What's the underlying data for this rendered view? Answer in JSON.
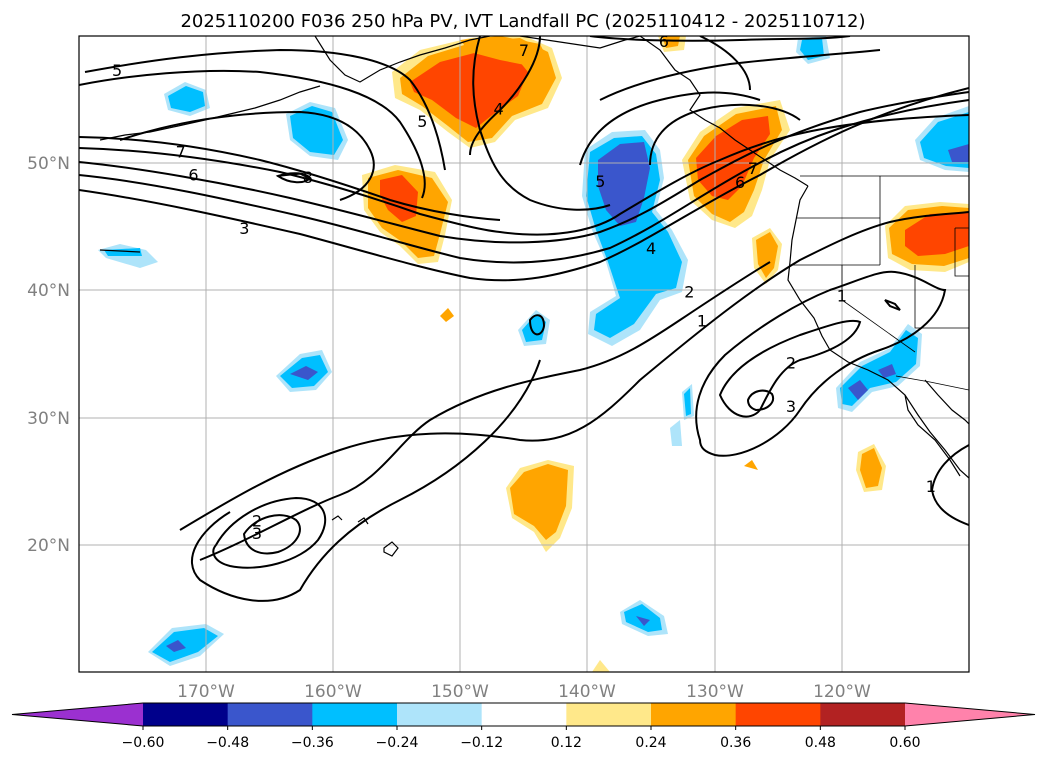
{
  "chart_data": {
    "type": "map-contour",
    "title": "2025110200 F036 250 hPa PV, IVT Landfall PC (2025110412 - 2025110712)",
    "lon_range": [
      -180,
      -110
    ],
    "lat_range": [
      10,
      60
    ],
    "lon_ticks": [
      -170,
      -160,
      -150,
      -140,
      -130,
      -120
    ],
    "lat_ticks": [
      20,
      30,
      40,
      50
    ],
    "lon_tick_labels": [
      "170°W",
      "160°W",
      "150°W",
      "140°W",
      "130°W",
      "120°W"
    ],
    "lat_tick_labels": [
      "20°N",
      "30°N",
      "40°N",
      "50°N"
    ],
    "grid": true,
    "colorbar": {
      "levels": [
        -0.6,
        -0.48,
        -0.36,
        -0.24,
        -0.12,
        0.12,
        0.24,
        0.36,
        0.48,
        0.6
      ],
      "tick_labels": [
        "−0.60",
        "−0.48",
        "−0.36",
        "−0.24",
        "−0.12",
        "0.12",
        "0.24",
        "0.36",
        "0.48",
        "0.60"
      ],
      "colors": [
        "#9b30d0",
        "#00008b",
        "#3a56cc",
        "#00bfff",
        "#aee4fa",
        "#ffffff",
        "#ffe88a",
        "#ffa500",
        "#ff4500",
        "#b22222",
        "#ff82ab"
      ],
      "extend": "both"
    },
    "contour_labels": [
      {
        "text": "5",
        "lon": -177,
        "lat": 57.2
      },
      {
        "text": "7",
        "lon": -172,
        "lat": 50.8
      },
      {
        "text": "6",
        "lon": -171,
        "lat": 49.0
      },
      {
        "text": "3",
        "lon": -167,
        "lat": 44.8
      },
      {
        "text": "8",
        "lon": -162,
        "lat": 48.8
      },
      {
        "text": "5",
        "lon": -153,
        "lat": 53.2
      },
      {
        "text": "4",
        "lon": -147,
        "lat": 54.2
      },
      {
        "text": "7",
        "lon": -145,
        "lat": 58.8
      },
      {
        "text": "6",
        "lon": -134,
        "lat": 59.5
      },
      {
        "text": "5",
        "lon": -139,
        "lat": 48.5
      },
      {
        "text": "4",
        "lon": -135,
        "lat": 43.2
      },
      {
        "text": "2",
        "lon": -132,
        "lat": 39.8
      },
      {
        "text": "1",
        "lon": -131,
        "lat": 37.5
      },
      {
        "text": "7",
        "lon": -127,
        "lat": 49.5
      },
      {
        "text": "6",
        "lon": -128,
        "lat": 48.4
      },
      {
        "text": "1",
        "lon": -120,
        "lat": 39.5
      },
      {
        "text": "2",
        "lon": -124,
        "lat": 34.2
      },
      {
        "text": "3",
        "lon": -124,
        "lat": 30.8
      },
      {
        "text": "2",
        "lon": -166,
        "lat": 21.8
      },
      {
        "text": "3",
        "lon": -166,
        "lat": 20.8
      },
      {
        "text": "1",
        "lon": -113,
        "lat": 24.5
      }
    ]
  }
}
